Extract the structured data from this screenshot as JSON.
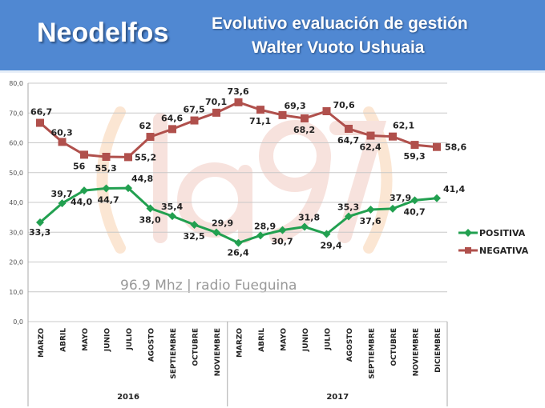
{
  "header": {
    "brand": "Neodelfos",
    "title_line1": "Evolutivo evaluación de gestión",
    "title_line2": "Walter Vuoto Ushuaia",
    "background_color": "#5088d2"
  },
  "watermark": {
    "logo": "(la97)",
    "text": "96.9 Mhz | radio Fueguina"
  },
  "chart_data": {
    "type": "line",
    "categories": [
      "MARZO",
      "ABRIL",
      "MAYO",
      "JUNIO",
      "JULIO",
      "AGOSTO",
      "SEPTIEMBRE",
      "OCTUBRE",
      "NOVIEMBRE",
      "MARZO",
      "ABRIL",
      "MAYO",
      "JUNIO",
      "JULIO",
      "AGOSTO",
      "SEPTIEMBRE",
      "OCTUBRE",
      "NOVIEMBRE",
      "DICIEMBRE"
    ],
    "groups": [
      {
        "label": "2016",
        "count": 9
      },
      {
        "label": "2017",
        "count": 10
      }
    ],
    "series": [
      {
        "name": "POSITIVA",
        "color": "#22a050",
        "marker": "diamond",
        "values": [
          33.3,
          39.7,
          44.0,
          44.7,
          44.8,
          38.0,
          35.4,
          32.5,
          29.9,
          26.4,
          28.9,
          30.7,
          31.8,
          29.4,
          35.3,
          37.6,
          37.9,
          40.7,
          41.4
        ],
        "labels": [
          "33,3",
          "39,7",
          "44,0",
          "44,7",
          "44,8",
          "38,0",
          "35,4",
          "32,5",
          "29,9",
          "26,4",
          "28,9",
          "30,7",
          "31,8",
          "29,4",
          "35,3",
          "37,6",
          "37,9",
          "40,7",
          "41,4"
        ]
      },
      {
        "name": "NEGATIVA",
        "color": "#b0504c",
        "marker": "square",
        "values": [
          66.7,
          60.3,
          56,
          55.3,
          55.2,
          62,
          64.6,
          67.5,
          70.1,
          73.6,
          71.1,
          69.3,
          68.2,
          70.6,
          64.7,
          62.4,
          62.1,
          59.3,
          58.6
        ],
        "labels": [
          "66,7",
          "60,3",
          "56",
          "55,3",
          "55,2",
          "62",
          "64,6",
          "67,5",
          "70,1",
          "73,6",
          "71,1",
          "69,3",
          "68,2",
          "70,6",
          "64,7",
          "62,4",
          "62,1",
          "59,3",
          "58,6"
        ]
      }
    ],
    "ylim": [
      0,
      80
    ],
    "yticks": [
      "0,0",
      "10,0",
      "20,0",
      "30,0",
      "40,0",
      "50,0",
      "60,0",
      "70,0",
      "80,0"
    ],
    "grid": true,
    "legend": "right"
  }
}
